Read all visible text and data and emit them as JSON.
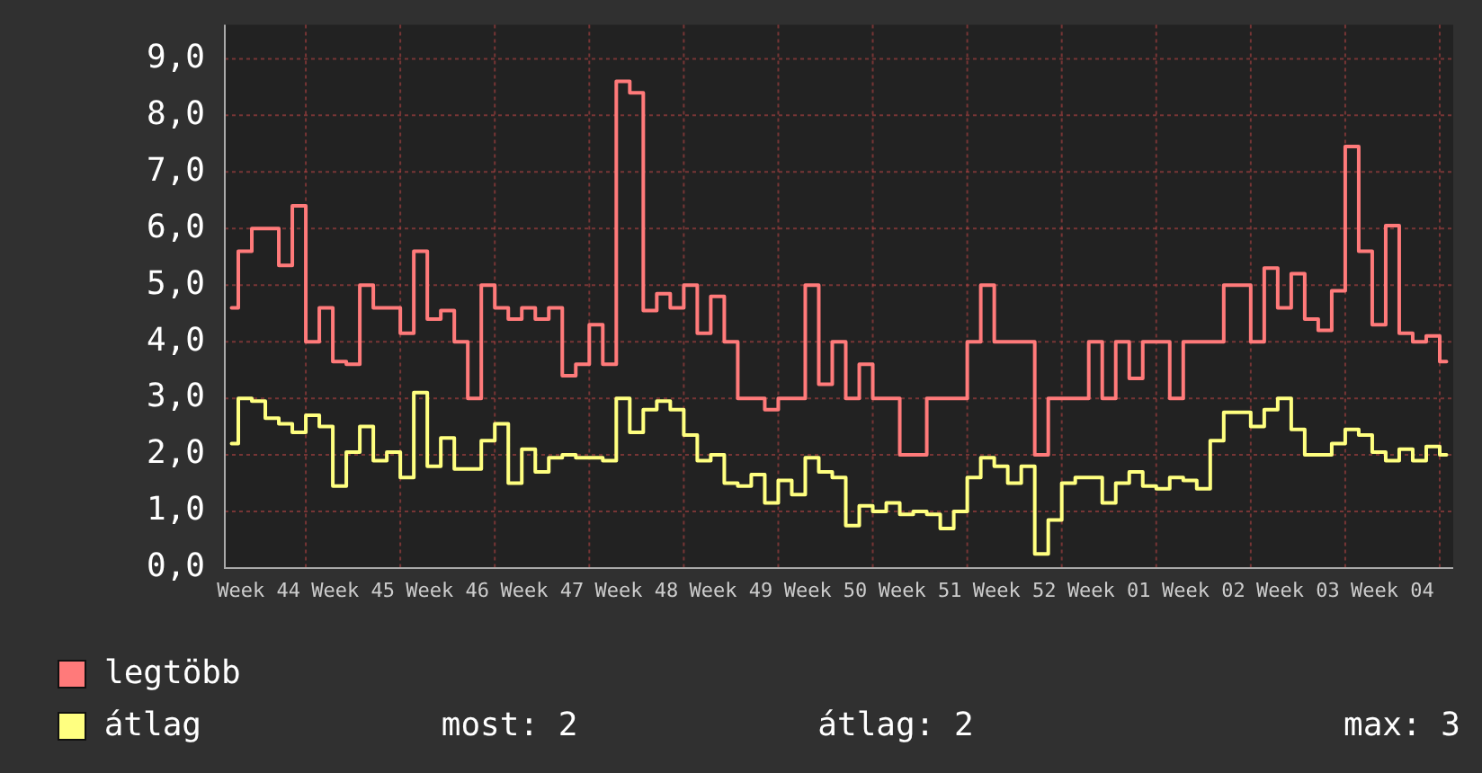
{
  "chart_data": {
    "type": "step",
    "legend": "bottom",
    "grid": true,
    "marker": "none",
    "categories": [
      null,
      null,
      "Week 44",
      null,
      null,
      null,
      null,
      null,
      null,
      "Week 45",
      null,
      null,
      null,
      null,
      null,
      null,
      "Week 46",
      null,
      null,
      null,
      null,
      null,
      null,
      "Week 47",
      null,
      null,
      null,
      null,
      null,
      null,
      "Week 48",
      null,
      null,
      null,
      null,
      null,
      null,
      "Week 49",
      null,
      null,
      null,
      null,
      null,
      null,
      "Week 50",
      null,
      null,
      null,
      null,
      null,
      null,
      "Week 51",
      null,
      null,
      null,
      null,
      null,
      null,
      "Week 52",
      null,
      null,
      null,
      null,
      null,
      null,
      "Week 01",
      null,
      null,
      null,
      null,
      null,
      null,
      "Week 02",
      null,
      null,
      null,
      null,
      null,
      null,
      "Week 03",
      null,
      null,
      null,
      null,
      null,
      null,
      "Week 04",
      null,
      null,
      null,
      null
    ],
    "ylim": [
      0,
      9.6
    ],
    "yticks": [
      {
        "value": 0,
        "label": "0,0"
      },
      {
        "value": 1,
        "label": "1,0"
      },
      {
        "value": 2,
        "label": "2,0"
      },
      {
        "value": 3,
        "label": "3,0"
      },
      {
        "value": 4,
        "label": "4,0"
      },
      {
        "value": 5,
        "label": "5,0"
      },
      {
        "value": 6,
        "label": "6,0"
      },
      {
        "value": 7,
        "label": "7,0"
      },
      {
        "value": 8,
        "label": "8,0"
      },
      {
        "value": 9,
        "label": "9,0"
      }
    ],
    "series": [
      {
        "name": "legtöbb",
        "color": "#ff7a7a",
        "values": [
          4.6,
          5.6,
          6.0,
          6.0,
          5.35,
          6.4,
          4.0,
          4.6,
          3.65,
          3.6,
          5.0,
          4.6,
          4.6,
          4.15,
          5.6,
          4.4,
          4.55,
          4.0,
          3.0,
          5.0,
          4.6,
          4.4,
          4.6,
          4.4,
          4.6,
          3.4,
          3.6,
          4.3,
          3.6,
          8.6,
          8.4,
          4.55,
          4.85,
          4.6,
          5.0,
          4.15,
          4.8,
          4.0,
          3.0,
          3.0,
          2.8,
          3.0,
          3.0,
          5.0,
          3.25,
          4.0,
          3.0,
          3.6,
          3.0,
          3.0,
          2.0,
          2.0,
          3.0,
          3.0,
          3.0,
          4.0,
          5.0,
          4.0,
          4.0,
          4.0,
          2.0,
          3.0,
          3.0,
          3.0,
          4.0,
          3.0,
          4.0,
          3.35,
          4.0,
          4.0,
          3.0,
          4.0,
          4.0,
          4.0,
          5.0,
          5.0,
          4.0,
          5.3,
          4.6,
          5.2,
          4.4,
          4.2,
          4.9,
          7.45,
          5.6,
          4.3,
          6.05,
          4.15,
          4.0,
          4.1,
          3.65
        ]
      },
      {
        "name": "átlag",
        "color": "#ffff80",
        "values": [
          2.2,
          3.0,
          2.95,
          2.65,
          2.55,
          2.4,
          2.7,
          2.5,
          1.45,
          2.05,
          2.5,
          1.9,
          2.05,
          1.6,
          3.1,
          1.8,
          2.3,
          1.75,
          1.75,
          2.25,
          2.55,
          1.5,
          2.1,
          1.7,
          1.95,
          2.0,
          1.95,
          1.95,
          1.9,
          3.0,
          2.4,
          2.8,
          2.95,
          2.8,
          2.35,
          1.9,
          2.0,
          1.5,
          1.45,
          1.65,
          1.15,
          1.55,
          1.3,
          1.95,
          1.7,
          1.6,
          0.75,
          1.1,
          1.0,
          1.15,
          0.95,
          1.0,
          0.95,
          0.7,
          1.0,
          1.6,
          1.95,
          1.8,
          1.5,
          1.8,
          0.25,
          0.85,
          1.5,
          1.6,
          1.6,
          1.15,
          1.5,
          1.7,
          1.45,
          1.4,
          1.6,
          1.55,
          1.4,
          2.25,
          2.75,
          2.75,
          2.5,
          2.8,
          3.0,
          2.45,
          2.0,
          2.0,
          2.2,
          2.45,
          2.35,
          2.05,
          1.9,
          2.1,
          1.9,
          2.15,
          2.0
        ]
      }
    ],
    "annotations": [
      "most: 2",
      "átlag: 2",
      "max: 3"
    ]
  }
}
